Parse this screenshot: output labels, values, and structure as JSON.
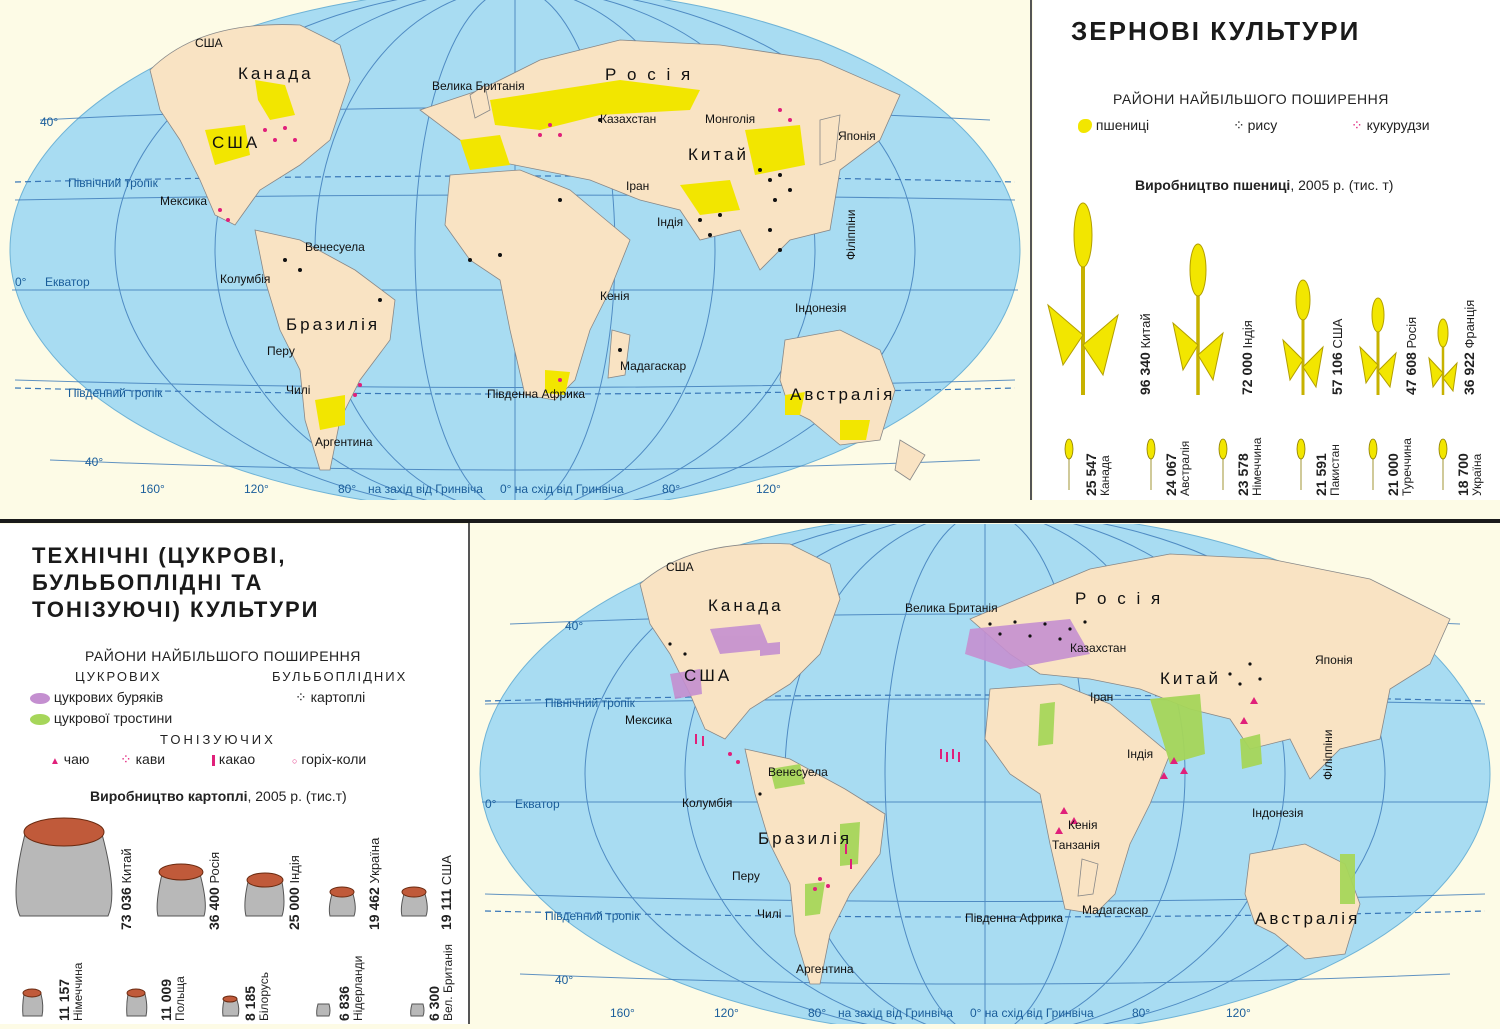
{
  "grain": {
    "title": "ЗЕРНОВІ КУЛЬТУРИ",
    "legend_heading": "РАЙОНИ НАЙБІЛЬШОГО ПОШИРЕННЯ",
    "legend": [
      {
        "label": "пшениці",
        "color": "#f2e600"
      },
      {
        "label": "рису",
        "color": "#111111"
      },
      {
        "label": "кукурудзи",
        "color": "#e0207a"
      }
    ],
    "production_title": "Виробництво пшениці",
    "production_sub": ", 2005 р. (тис. т)",
    "wheat_large": [
      {
        "value": "96 340",
        "country": "Китай"
      },
      {
        "value": "72 000",
        "country": "Індія"
      },
      {
        "value": "57 106",
        "country": "США"
      },
      {
        "value": "47 608",
        "country": "Росія"
      },
      {
        "value": "36 922",
        "country": "Франція"
      }
    ],
    "wheat_small": [
      {
        "value": "25 547",
        "country": "Канада"
      },
      {
        "value": "24 067",
        "country": "Австралія"
      },
      {
        "value": "23 578",
        "country": "Німеччина"
      },
      {
        "value": "21 591",
        "country": "Пакистан"
      },
      {
        "value": "21 000",
        "country": "Туреччина"
      },
      {
        "value": "18 700",
        "country": "Україна"
      }
    ]
  },
  "technical": {
    "title_lines": [
      "ТЕХНІЧНІ (ЦУКРОВІ,",
      "БУЛЬБОПЛІДНІ ТА",
      "ТОНІЗУЮЧІ) КУЛЬТУРИ"
    ],
    "legend_heading": "РАЙОНИ НАЙБІЛЬШОГО ПОШИРЕННЯ",
    "sugar_heading": "ЦУКРОВИХ",
    "tuber_heading": "БУЛЬБОПЛІДНИХ",
    "tonic_heading": "ТОНІЗУЮЧИХ",
    "sugar": [
      {
        "label": "цукрових буряків",
        "color": "#c48fd0"
      },
      {
        "label": "цукрової тростини",
        "color": "#a6d65a"
      }
    ],
    "potato_label": "картоплі",
    "tonic": [
      {
        "label": "чаю",
        "color": "#e0207a"
      },
      {
        "label": "кави",
        "color": "#e0207a"
      },
      {
        "label": "какао",
        "color": "#e0207a"
      },
      {
        "label": "горіх-коли",
        "color": "#e0207a"
      }
    ],
    "production_title": "Виробництво картоплі",
    "production_sub": ", 2005 р. (тис.т)",
    "potato_top": [
      {
        "value": "73 036",
        "country": "Китай"
      },
      {
        "value": "36 400",
        "country": "Росія"
      },
      {
        "value": "25 000",
        "country": "Індія"
      },
      {
        "value": "19 462",
        "country": "Україна"
      },
      {
        "value": "19 111",
        "country": "США"
      }
    ],
    "potato_bottom": [
      {
        "value": "11 157",
        "country": "Німеччина"
      },
      {
        "value": "11 009",
        "country": "Польща"
      },
      {
        "value": "8 185",
        "country": "Білорусь"
      },
      {
        "value": "6 836",
        "country": "Нідерланди"
      },
      {
        "value": "6 300",
        "country": "Вел. Британія"
      }
    ]
  },
  "map_labels": {
    "russia": "Р о с і я",
    "canada": "Канада",
    "usa": "США",
    "usa_small": "США",
    "china": "Китай",
    "brazil": "Бразилія",
    "australia": "Австралія",
    "indonesia": "Індонезія",
    "kazakhstan": "Казахстан",
    "mongolia": "Монголія",
    "japan": "Японія",
    "iran": "Іран",
    "india": "Індія",
    "philippines": "Філіппіни",
    "uk": "Велика Британія",
    "mexico": "Мексика",
    "venezuela": "Венесуела",
    "colombia": "Колумбія",
    "peru": "Перу",
    "chile": "Чилі",
    "argentina": "Аргентина",
    "kenya": "Кенія",
    "tanzania": "Танзанія",
    "madagascar": "Мадагаскар",
    "south_africa": "Південна Африка",
    "north_tropic": "Північний тропік",
    "south_tropic": "Південний тропік",
    "equator": "Екватор",
    "west": "на захід від Гринвіча",
    "east": "0° на схід від Гринвіча",
    "lon_160": "160°",
    "lon_120": "120°",
    "lon_80": "80°",
    "lon_80e": "80°",
    "lon_120e": "120°",
    "lat_40": "40°",
    "lat_0": "0°"
  }
}
